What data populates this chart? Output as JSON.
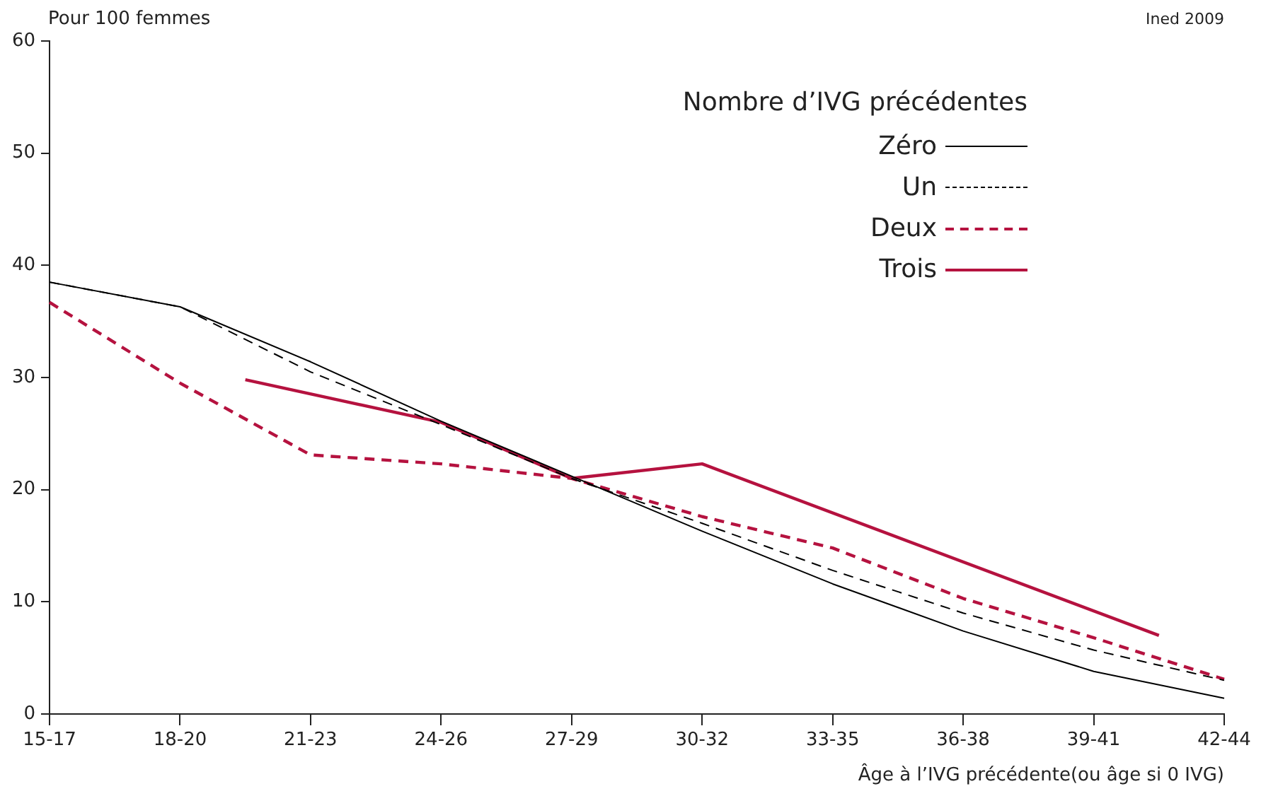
{
  "chart_data": {
    "type": "line",
    "ylabel": "Pour 100 femmes",
    "xlabel": "Âge à l’IVG précédente(ou âge si 0 IVG)",
    "legend_title": "Nombre d’IVG précédentes",
    "annotations": [
      "Ined 2009"
    ],
    "categories": [
      "15-17",
      null,
      "18-20",
      null,
      "21-23",
      null,
      "24-26",
      null,
      "27-29",
      null,
      "30-32",
      null,
      "33-35",
      null,
      "36-38",
      null,
      "39-41",
      null,
      "42-44"
    ],
    "ylim": [
      0,
      60
    ],
    "yticks": [
      0,
      10,
      20,
      30,
      40,
      50,
      60
    ],
    "grid": false,
    "legend": "top right",
    "marker": "none",
    "series": [
      {
        "name": "Zéro",
        "color": "#000000",
        "line_style": "solid",
        "values": [
          38.5,
          null,
          36.3,
          null,
          31.4,
          null,
          26.1,
          null,
          21.2,
          null,
          16.3,
          null,
          11.6,
          null,
          7.4,
          null,
          3.8,
          null,
          1.4
        ]
      },
      {
        "name": "Un",
        "color": "#000000",
        "line_style": "dashed",
        "values": [
          38.5,
          null,
          36.3,
          null,
          30.5,
          null,
          25.8,
          null,
          21.0,
          null,
          17.0,
          null,
          12.8,
          null,
          9.0,
          null,
          5.7,
          null,
          3.0
        ]
      },
      {
        "name": "Deux",
        "color": "#b5123f",
        "line_style": "dashed",
        "values": [
          36.7,
          null,
          29.5,
          null,
          23.1,
          null,
          22.3,
          null,
          21.0,
          null,
          17.6,
          null,
          14.8,
          null,
          10.3,
          null,
          6.8,
          null,
          3.1
        ]
      },
      {
        "name": "Trois",
        "color": "#b5123f",
        "line_style": "solid",
        "values": [
          null,
          null,
          null,
          29.8,
          null,
          null,
          26.0,
          null,
          21.0,
          null,
          22.3,
          null,
          null,
          null,
          null,
          null,
          null,
          7.0,
          null
        ]
      }
    ]
  }
}
